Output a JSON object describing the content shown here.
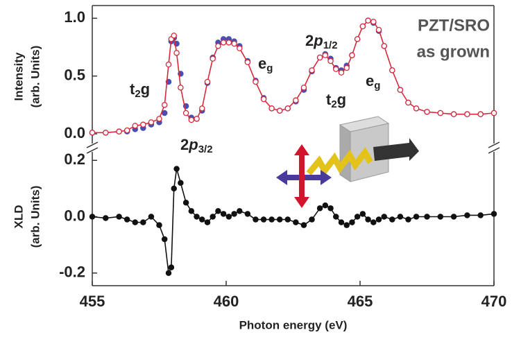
{
  "chart_data": [
    {
      "type": "scatter-line",
      "ylabel": [
        "Intensity",
        "(arb. Units)"
      ],
      "x": [
        455.0,
        455.5,
        456.0,
        456.3,
        456.6,
        456.9,
        457.2,
        457.5,
        457.7,
        457.85,
        457.95,
        458.05,
        458.15,
        458.3,
        458.5,
        458.7,
        458.9,
        459.1,
        459.3,
        459.5,
        459.7,
        459.9,
        460.1,
        460.3,
        460.5,
        460.8,
        461.1,
        461.4,
        461.7,
        462.0,
        462.3,
        462.6,
        462.9,
        463.2,
        463.5,
        463.7,
        463.9,
        464.1,
        464.3,
        464.5,
        464.7,
        464.9,
        465.1,
        465.3,
        465.5,
        465.7,
        465.9,
        466.2,
        466.5,
        466.8,
        467.1,
        467.5,
        468.0,
        468.5,
        469.0,
        469.5,
        470.0
      ],
      "series": [
        {
          "color": "#4a4fb0",
          "marker": "filled",
          "line": false,
          "values": [
            0.01,
            0.01,
            0.02,
            0.02,
            0.04,
            0.05,
            0.08,
            0.1,
            0.18,
            0.45,
            0.8,
            0.83,
            0.78,
            0.52,
            0.24,
            0.14,
            0.13,
            0.2,
            0.44,
            0.66,
            0.79,
            0.82,
            0.82,
            0.8,
            0.76,
            0.63,
            0.46,
            0.31,
            0.22,
            0.2,
            0.22,
            0.28,
            0.38,
            0.54,
            0.66,
            0.69,
            0.65,
            0.57,
            0.55,
            0.59,
            0.68,
            0.82,
            0.93,
            0.98,
            0.96,
            0.89,
            0.76,
            0.55,
            0.38,
            0.27,
            0.22,
            0.19,
            0.18,
            0.17,
            0.17,
            0.17,
            0.18
          ]
        },
        {
          "color": "#d8283a",
          "marker": "open",
          "line": true,
          "values": [
            0.01,
            0.01,
            0.02,
            0.03,
            0.07,
            0.08,
            0.1,
            0.13,
            0.25,
            0.6,
            0.82,
            0.85,
            0.7,
            0.4,
            0.18,
            0.12,
            0.13,
            0.22,
            0.45,
            0.65,
            0.76,
            0.79,
            0.79,
            0.78,
            0.74,
            0.62,
            0.45,
            0.3,
            0.22,
            0.2,
            0.22,
            0.29,
            0.4,
            0.55,
            0.66,
            0.68,
            0.63,
            0.56,
            0.53,
            0.57,
            0.68,
            0.82,
            0.93,
            0.98,
            0.97,
            0.9,
            0.76,
            0.55,
            0.38,
            0.27,
            0.22,
            0.19,
            0.18,
            0.17,
            0.17,
            0.17,
            0.18
          ]
        }
      ],
      "ylim": [
        -0.12,
        1.11
      ],
      "yticks": [
        {
          "value": 0,
          "label": "0.0"
        },
        {
          "value": 0.5,
          "label": "0.5"
        },
        {
          "value": 1,
          "label": "1.0"
        }
      ],
      "xlim": [
        455,
        470
      ],
      "annotations": [
        {
          "parts": [
            {
              "text": "t"
            },
            {
              "text": "2",
              "sub": true
            },
            {
              "text": "g"
            }
          ]
        },
        {
          "parts": [
            {
              "text": "2"
            },
            {
              "text": "p",
              "italic": true
            },
            {
              "text": "3/2",
              "sub": true
            }
          ]
        },
        {
          "parts": [
            {
              "text": "e"
            },
            {
              "text": "g",
              "sub": true
            }
          ]
        },
        {
          "parts": [
            {
              "text": "2"
            },
            {
              "text": "p",
              "italic": true
            },
            {
              "text": "1/2",
              "sub": true
            }
          ]
        },
        {
          "parts": [
            {
              "text": "t"
            },
            {
              "text": "2",
              "sub": true
            },
            {
              "text": "g"
            }
          ]
        },
        {
          "parts": [
            {
              "text": "e"
            },
            {
              "text": "g",
              "sub": true
            }
          ]
        }
      ],
      "tag": [
        "PZT/SRO",
        "as grown"
      ]
    },
    {
      "type": "scatter-line",
      "ylabel": [
        "XLD",
        "(arb. Units)"
      ],
      "xlabel": "Photon energy (eV)",
      "x": [
        455.0,
        455.5,
        456.0,
        456.3,
        456.6,
        456.9,
        457.2,
        457.5,
        457.7,
        457.85,
        457.95,
        458.05,
        458.15,
        458.3,
        458.5,
        458.7,
        458.9,
        459.1,
        459.3,
        459.5,
        459.7,
        459.9,
        460.1,
        460.3,
        460.5,
        460.8,
        461.1,
        461.4,
        461.7,
        462.0,
        462.3,
        462.6,
        462.9,
        463.2,
        463.5,
        463.7,
        463.9,
        464.1,
        464.3,
        464.5,
        464.7,
        464.9,
        465.1,
        465.3,
        465.5,
        465.7,
        465.9,
        466.2,
        466.5,
        466.8,
        467.1,
        467.5,
        468.0,
        468.5,
        469.0,
        469.5,
        470.0
      ],
      "series": [
        {
          "color": "#111111",
          "marker": "filled",
          "line": true,
          "values": [
            0.0,
            -0.005,
            0.0,
            -0.01,
            -0.02,
            -0.02,
            0.0,
            -0.03,
            -0.08,
            -0.2,
            -0.18,
            0.1,
            0.17,
            0.12,
            0.05,
            0.02,
            0.0,
            -0.01,
            -0.02,
            0.0,
            0.02,
            0.01,
            0.0,
            0.01,
            0.02,
            0.01,
            -0.01,
            -0.01,
            -0.01,
            -0.01,
            -0.01,
            -0.02,
            -0.03,
            -0.01,
            0.03,
            0.04,
            0.03,
            0.0,
            -0.02,
            -0.03,
            -0.02,
            0.0,
            0.01,
            -0.01,
            -0.02,
            -0.01,
            0.0,
            -0.01,
            0.0,
            -0.01,
            0.0,
            0.0,
            0.0,
            0.0,
            0.005,
            0.005,
            0.01
          ]
        }
      ],
      "ylim": [
        -0.245,
        0.245
      ],
      "yticks": [
        {
          "value": -0.2,
          "label": "-0.2"
        },
        {
          "value": 0,
          "label": "0.0"
        },
        0.2
      ],
      "xlim": [
        455,
        470
      ],
      "xticks": [
        455,
        460,
        465,
        470
      ]
    }
  ]
}
